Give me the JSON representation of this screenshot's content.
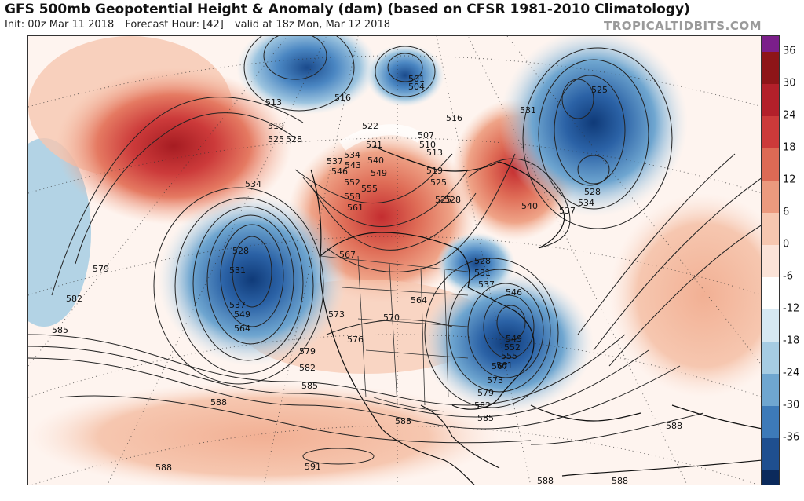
{
  "header": {
    "title": "GFS 500mb Geopotential Height & Anomaly (dam) (based on CFSR 1981-2010 Climatology)",
    "init": "Init: 00z Mar 11 2018",
    "forecast_hour": "Forecast Hour: [42]",
    "valid": "valid at 18z Mon, Mar 12 2018",
    "brand": "TROPICALTIDBITS.COM"
  },
  "colorbar": {
    "ticks": [
      "36",
      "30",
      "24",
      "18",
      "12",
      "6",
      "0",
      "-6",
      "-12",
      "-18",
      "-24",
      "-30",
      "-36"
    ],
    "colors_top_to_bottom": [
      "#7b1f8a",
      "#8e1518",
      "#b3202a",
      "#cc3a3a",
      "#dc6a55",
      "#eb9a7e",
      "#f6c7b0",
      "#fbe3d8",
      "#ffffff",
      "#d6e8f2",
      "#a6cce3",
      "#6fa6d0",
      "#3d7ab8",
      "#1f4f8f",
      "#0b2a5c"
    ]
  },
  "contour_labels": [
    "513",
    "516",
    "519",
    "525",
    "528",
    "501",
    "504",
    "507",
    "510",
    "513",
    "516",
    "519",
    "522",
    "525",
    "528",
    "531",
    "534",
    "537",
    "540",
    "543",
    "546",
    "549",
    "552",
    "555",
    "558",
    "561",
    "525",
    "534",
    "528",
    "531",
    "537",
    "549",
    "564",
    "579",
    "582",
    "585",
    "567",
    "573",
    "570",
    "564",
    "576",
    "579",
    "582",
    "585",
    "588",
    "588",
    "591",
    "588",
    "528",
    "531",
    "537",
    "546",
    "549",
    "552",
    "555",
    "561",
    "567",
    "573",
    "579",
    "582",
    "585",
    "588",
    "588",
    "588",
    "540",
    "537",
    "534",
    "528",
    "525",
    "531"
  ]
}
